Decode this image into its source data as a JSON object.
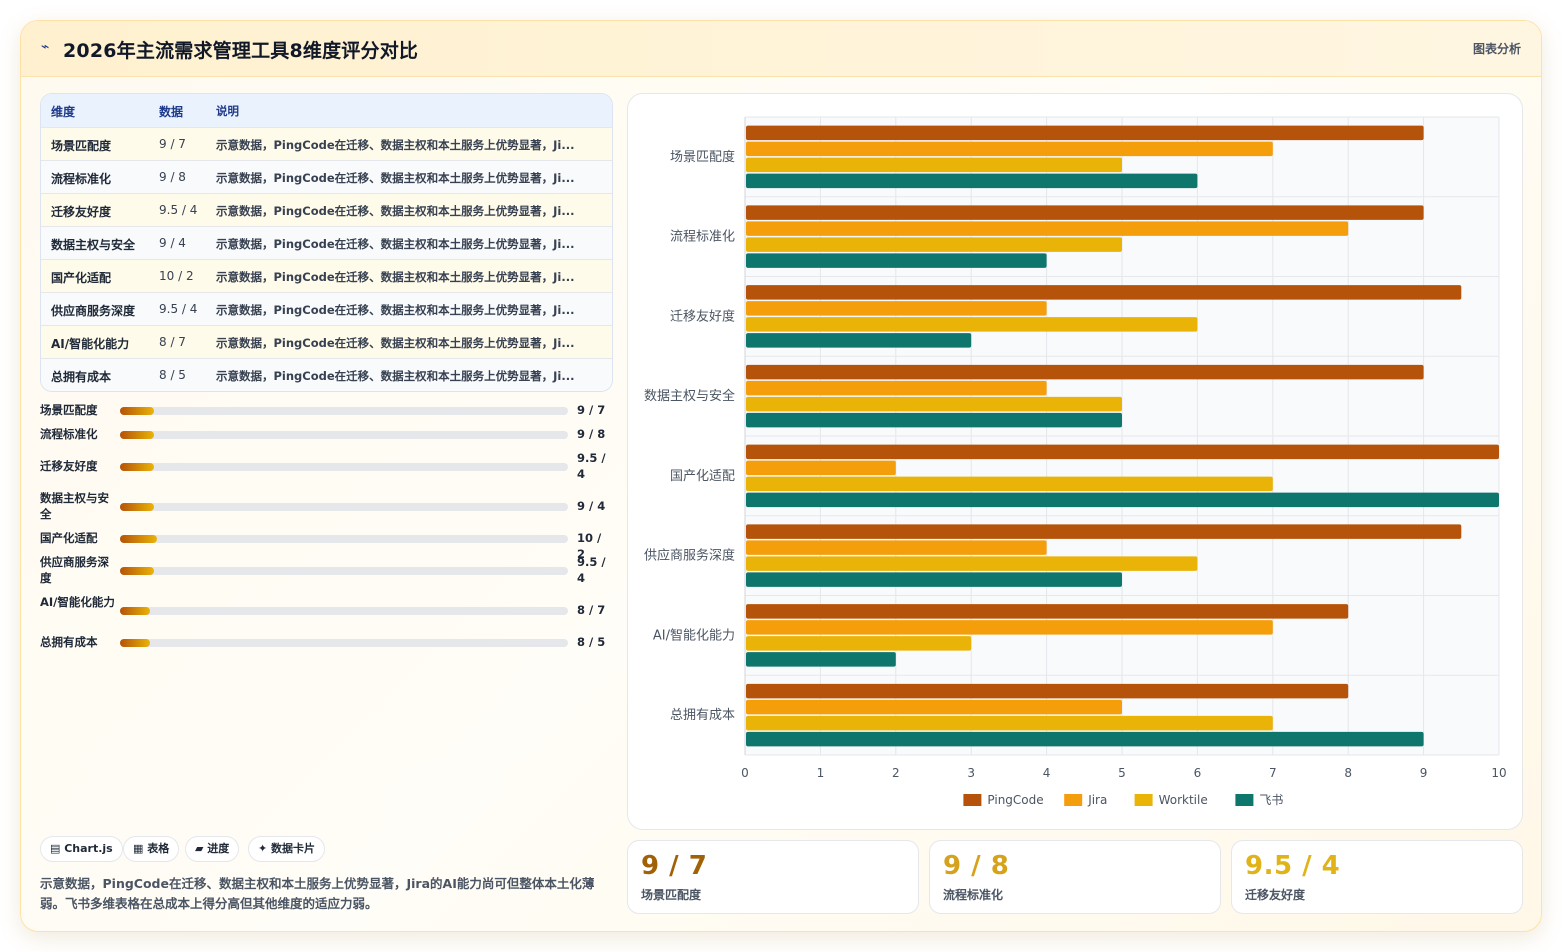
{
  "header": {
    "logo_icon": "chart-icon",
    "title": "2026年主流需求管理工具8维度评分对比",
    "tag": "图表分析"
  },
  "table": {
    "headers": [
      "维度",
      "数据",
      "说明"
    ],
    "rows": [
      {
        "dim": "场景匹配度",
        "data": "9 / 7",
        "desc": "示意数据，PingCode在迁移、数据主权和本土服务上优势显著，Ji..."
      },
      {
        "dim": "流程标准化",
        "data": "9 / 8",
        "desc": "示意数据，PingCode在迁移、数据主权和本土服务上优势显著，Ji..."
      },
      {
        "dim": "迁移友好度",
        "data": "9.5 / 4",
        "desc": "示意数据，PingCode在迁移、数据主权和本土服务上优势显著，Ji..."
      },
      {
        "dim": "数据主权与安全",
        "data": "9 / 4",
        "desc": "示意数据，PingCode在迁移、数据主权和本土服务上优势显著，Ji..."
      },
      {
        "dim": "国产化适配",
        "data": "10 / 2",
        "desc": "示意数据，PingCode在迁移、数据主权和本土服务上优势显著，Ji..."
      },
      {
        "dim": "供应商服务深度",
        "data": "9.5 / 4",
        "desc": "示意数据，PingCode在迁移、数据主权和本土服务上优势显著，Ji..."
      },
      {
        "dim": "AI/智能化能力",
        "data": "8 / 7",
        "desc": "示意数据，PingCode在迁移、数据主权和本土服务上优势显著，Ji..."
      },
      {
        "dim": "总拥有成本",
        "data": "8 / 5",
        "desc": "示意数据，PingCode在迁移、数据主权和本土服务上优势显著，Ji..."
      }
    ]
  },
  "progress": [
    {
      "label": "场景匹配度",
      "value": "9 / 7",
      "fill_pct": 7.5
    },
    {
      "label": "流程标准化",
      "value": "9 / 8",
      "fill_pct": 7.5
    },
    {
      "label": "迁移友好度",
      "value": "9.5 / 4",
      "fill_pct": 7.5
    },
    {
      "label": "数据主权与安全",
      "value": "9 / 4",
      "fill_pct": 7.5
    },
    {
      "label": "国产化适配",
      "value": "10 / 2",
      "fill_pct": 8.2
    },
    {
      "label": "供应商服务深度",
      "value": "9.5 / 4",
      "fill_pct": 7.5
    },
    {
      "label": "AI/智能化能力",
      "value": "8 / 7",
      "fill_pct": 6.7
    },
    {
      "label": "总拥有成本",
      "value": "8 / 5",
      "fill_pct": 6.7
    }
  ],
  "chips": [
    "▤ Chart.js",
    "▦ 表格",
    "▰ 进度",
    "✦ 数据卡片"
  ],
  "note": "示意数据，PingCode在迁移、数据主权和本土服务上优势显著，Jira的AI能力尚可但整体本土化薄弱。飞书多维表格在总成本上得分高但其他维度的适应力弱。",
  "kpis": [
    {
      "value": "9 / 7",
      "label": "场景匹配度",
      "color": "#a16207"
    },
    {
      "value": "9 / 8",
      "label": "流程标准化",
      "color": "#d6a21b"
    },
    {
      "value": "9.5 / 4",
      "label": "迁移友好度",
      "color": "#e0b418"
    }
  ],
  "chart_data": {
    "type": "bar",
    "orientation": "horizontal",
    "categories": [
      "场景匹配度",
      "流程标准化",
      "迁移友好度",
      "数据主权与安全",
      "国产化适配",
      "供应商服务深度",
      "AI/智能化能力",
      "总拥有成本"
    ],
    "series": [
      {
        "name": "PingCode",
        "color": "#b45309",
        "values": [
          9,
          9,
          9.5,
          9,
          10,
          9.5,
          8,
          8
        ]
      },
      {
        "name": "Jira",
        "color": "#f59e0b",
        "values": [
          7,
          8,
          4,
          4,
          2,
          4,
          7,
          5
        ]
      },
      {
        "name": "Worktile",
        "color": "#eab308",
        "values": [
          5,
          5,
          6,
          5,
          7,
          6,
          3,
          7
        ]
      },
      {
        "name": "飞书",
        "color": "#0f766e",
        "values": [
          6,
          4,
          3,
          5,
          10,
          5,
          2,
          9
        ]
      }
    ],
    "xlim": [
      0,
      10
    ],
    "xticks": [
      "0",
      "1",
      "2",
      "3",
      "4",
      "5",
      "6",
      "7",
      "8",
      "9",
      "10"
    ],
    "grid": true,
    "legend_position": "bottom"
  }
}
